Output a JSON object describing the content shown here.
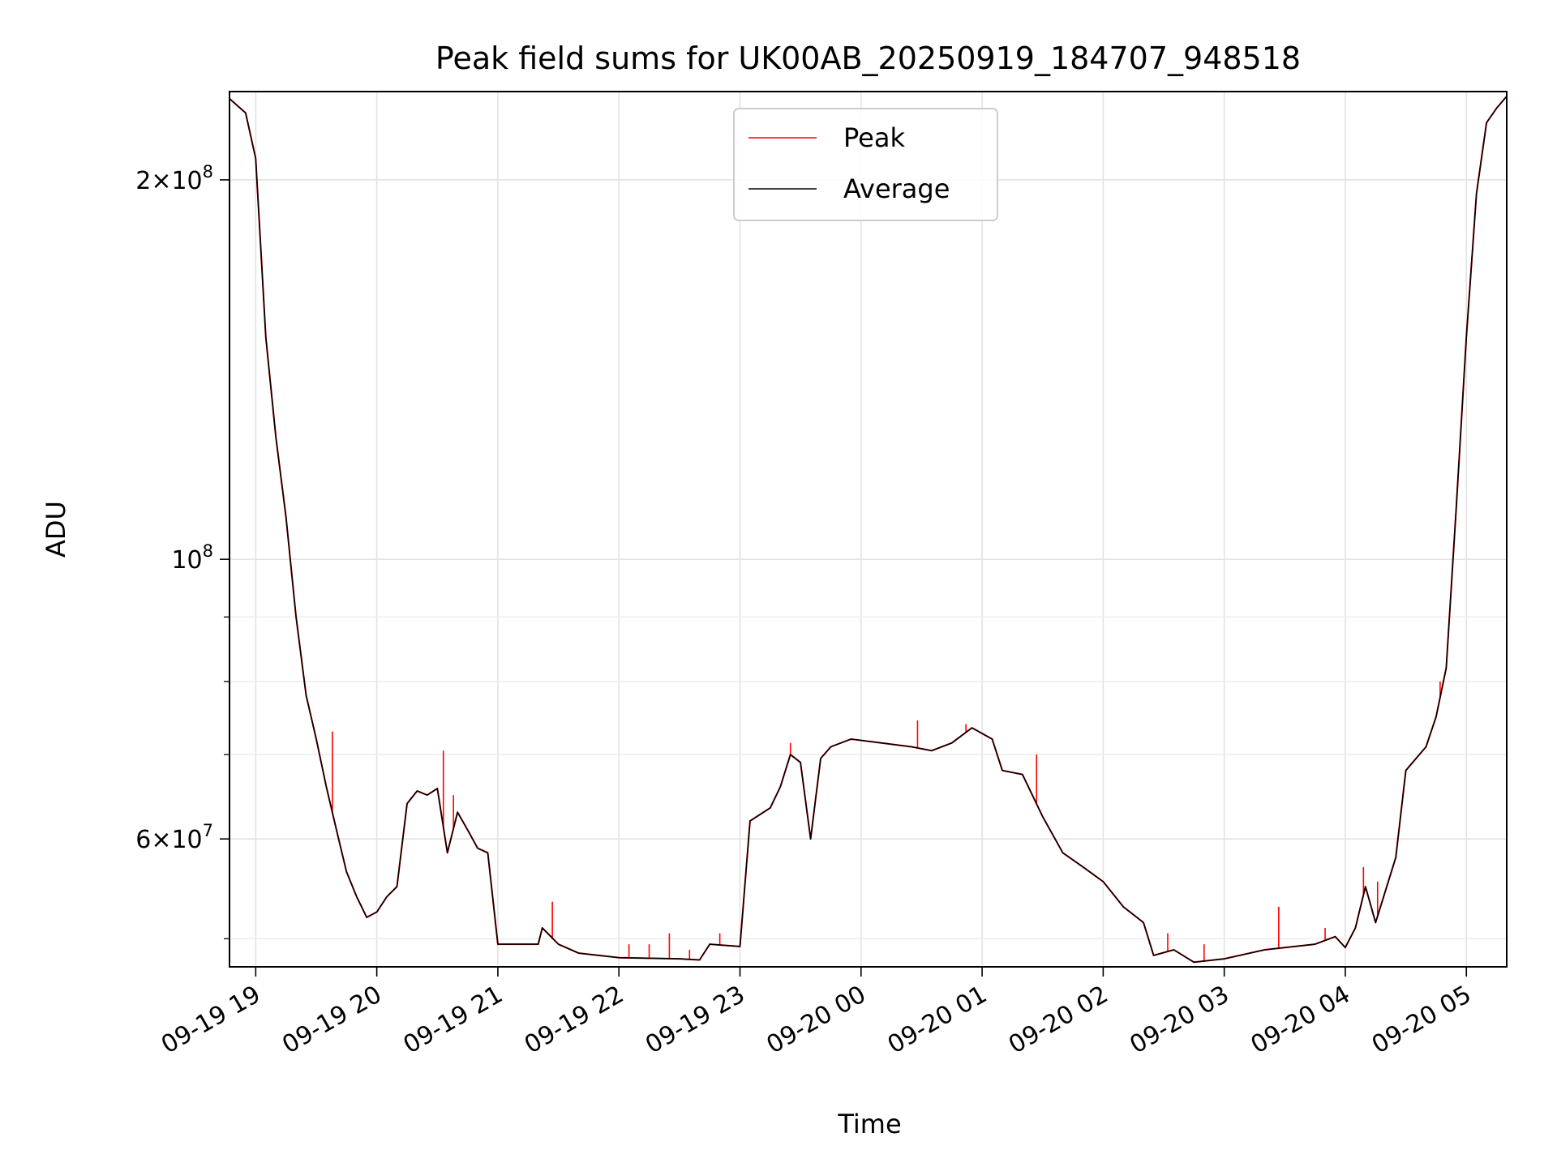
{
  "chart_data": {
    "type": "line",
    "title": "Peak field sums for UK00AB_20250919_184707_948518",
    "xlabel": "Time",
    "ylabel": "ADU",
    "x_start": "09-19 18:47",
    "x_end": "09-20 05:20",
    "ylim": [
      47500000,
      235000000
    ],
    "yscale": "log",
    "grid": true,
    "legend_position": "top-center",
    "x_ticks": [
      {
        "label": "09-19 19",
        "t": "09-19 19:00"
      },
      {
        "label": "09-19 20",
        "t": "09-19 20:00"
      },
      {
        "label": "09-19 21",
        "t": "09-19 21:00"
      },
      {
        "label": "09-19 22",
        "t": "09-19 22:00"
      },
      {
        "label": "09-19 23",
        "t": "09-19 23:00"
      },
      {
        "label": "09-20 00",
        "t": "09-20 00:00"
      },
      {
        "label": "09-20 01",
        "t": "09-20 01:00"
      },
      {
        "label": "09-20 02",
        "t": "09-20 02:00"
      },
      {
        "label": "09-20 03",
        "t": "09-20 03:00"
      },
      {
        "label": "09-20 04",
        "t": "09-20 04:00"
      },
      {
        "label": "09-20 05",
        "t": "09-20 05:00"
      }
    ],
    "y_ticks": [
      {
        "value": 200000000,
        "mantissa": "2",
        "exp": "8"
      },
      {
        "value": 100000000,
        "mantissa": "",
        "exp": "8"
      },
      {
        "value": 60000000,
        "mantissa": "6",
        "exp": "7"
      }
    ],
    "y_minor_ticks": [
      50000000,
      70000000,
      80000000,
      90000000
    ],
    "series": [
      {
        "name": "Peak",
        "color": "#ff0000",
        "line_width": 1
      },
      {
        "name": "Average",
        "color": "#000000",
        "line_width": 1
      }
    ],
    "average_points": [
      [
        "09-19 18:47",
        232000000
      ],
      [
        "09-19 18:55",
        226000000
      ],
      [
        "09-19 19:00",
        208000000
      ],
      [
        "09-19 19:05",
        150000000
      ],
      [
        "09-19 19:10",
        125000000
      ],
      [
        "09-19 19:15",
        108000000
      ],
      [
        "09-19 19:20",
        90000000
      ],
      [
        "09-19 19:25",
        78000000
      ],
      [
        "09-19 19:30",
        72000000
      ],
      [
        "09-19 19:35",
        66000000
      ],
      [
        "09-19 19:40",
        61000000
      ],
      [
        "09-19 19:45",
        56500000
      ],
      [
        "09-19 19:50",
        54000000
      ],
      [
        "09-19 19:55",
        52000000
      ],
      [
        "09-19 20:00",
        52500000
      ],
      [
        "09-19 20:05",
        54000000
      ],
      [
        "09-19 20:10",
        55000000
      ],
      [
        "09-19 20:15",
        64000000
      ],
      [
        "09-19 20:20",
        65500000
      ],
      [
        "09-19 20:25",
        65000000
      ],
      [
        "09-19 20:30",
        65800000
      ],
      [
        "09-19 20:35",
        58500000
      ],
      [
        "09-19 20:40",
        63000000
      ],
      [
        "09-19 20:45",
        61000000
      ],
      [
        "09-19 20:50",
        59000000
      ],
      [
        "09-19 20:55",
        58500000
      ],
      [
        "09-19 21:00",
        49500000
      ],
      [
        "09-19 21:20",
        49500000
      ],
      [
        "09-19 21:22",
        51000000
      ],
      [
        "09-19 21:30",
        49500000
      ],
      [
        "09-19 21:40",
        48700000
      ],
      [
        "09-19 22:00",
        48300000
      ],
      [
        "09-19 22:30",
        48200000
      ],
      [
        "09-19 22:40",
        48100000
      ],
      [
        "09-19 22:45",
        49500000
      ],
      [
        "09-19 23:00",
        49300000
      ],
      [
        "09-19 23:05",
        62000000
      ],
      [
        "09-19 23:15",
        63500000
      ],
      [
        "09-19 23:20",
        66000000
      ],
      [
        "09-19 23:25",
        70000000
      ],
      [
        "09-19 23:30",
        69000000
      ],
      [
        "09-19 23:35",
        60000000
      ],
      [
        "09-19 23:40",
        69500000
      ],
      [
        "09-19 23:45",
        71000000
      ],
      [
        "09-19 23:55",
        72000000
      ],
      [
        "09-20 00:10",
        71500000
      ],
      [
        "09-20 00:25",
        71000000
      ],
      [
        "09-20 00:35",
        70500000
      ],
      [
        "09-20 00:45",
        71500000
      ],
      [
        "09-20 00:55",
        73500000
      ],
      [
        "09-20 01:05",
        72000000
      ],
      [
        "09-20 01:10",
        68000000
      ],
      [
        "09-20 01:20",
        67500000
      ],
      [
        "09-20 01:30",
        62500000
      ],
      [
        "09-20 01:40",
        58500000
      ],
      [
        "09-20 01:50",
        57000000
      ],
      [
        "09-20 02:00",
        55500000
      ],
      [
        "09-20 02:10",
        53000000
      ],
      [
        "09-20 02:20",
        51500000
      ],
      [
        "09-20 02:25",
        48500000
      ],
      [
        "09-20 02:35",
        49000000
      ],
      [
        "09-20 02:45",
        47900000
      ],
      [
        "09-20 03:00",
        48200000
      ],
      [
        "09-20 03:20",
        49000000
      ],
      [
        "09-20 03:45",
        49500000
      ],
      [
        "09-20 03:55",
        50200000
      ],
      [
        "09-20 04:00",
        49200000
      ],
      [
        "09-20 04:05",
        51000000
      ],
      [
        "09-20 04:10",
        55000000
      ],
      [
        "09-20 04:15",
        51500000
      ],
      [
        "09-20 04:25",
        58000000
      ],
      [
        "09-20 04:30",
        68000000
      ],
      [
        "09-20 04:40",
        71000000
      ],
      [
        "09-20 04:45",
        75000000
      ],
      [
        "09-20 04:50",
        82000000
      ],
      [
        "09-20 04:55",
        110000000
      ],
      [
        "09-20 05:00",
        150000000
      ],
      [
        "09-20 05:05",
        195000000
      ],
      [
        "09-20 05:10",
        222000000
      ],
      [
        "09-20 05:15",
        228000000
      ],
      [
        "09-20 05:20",
        233000000
      ]
    ],
    "peak_spikes": [
      [
        "09-19 19:38",
        73000000
      ],
      [
        "09-19 20:33",
        70500000
      ],
      [
        "09-19 20:38",
        65000000
      ],
      [
        "09-19 21:27",
        53500000
      ],
      [
        "09-19 22:05",
        49500000
      ],
      [
        "09-19 22:15",
        49500000
      ],
      [
        "09-19 22:25",
        50500000
      ],
      [
        "09-19 22:35",
        49000000
      ],
      [
        "09-19 22:50",
        50500000
      ],
      [
        "09-19 23:25",
        71500000
      ],
      [
        "09-20 00:28",
        74500000
      ],
      [
        "09-20 00:52",
        74000000
      ],
      [
        "09-20 01:27",
        70000000
      ],
      [
        "09-20 02:13",
        52500000
      ],
      [
        "09-20 02:32",
        50500000
      ],
      [
        "09-20 02:50",
        49500000
      ],
      [
        "09-20 03:27",
        53000000
      ],
      [
        "09-20 03:50",
        51000000
      ],
      [
        "09-20 04:09",
        57000000
      ],
      [
        "09-20 04:16",
        55500000
      ],
      [
        "09-20 04:47",
        80000000
      ]
    ]
  }
}
